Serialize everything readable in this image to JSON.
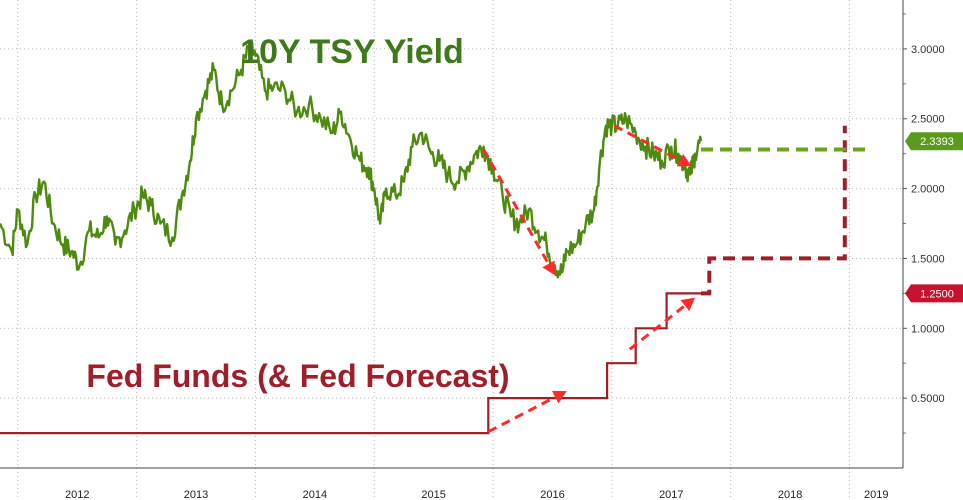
{
  "chart_data": {
    "type": "line",
    "titles": {
      "yield": "10Y TSY Yield",
      "fed": "Fed Funds (& Fed Forecast)"
    },
    "colors": {
      "yield": "#4f8a10",
      "yield_text": "#3f7a1a",
      "fed": "#9e1f2a",
      "fed_text": "#9e1f2a",
      "arrow": "#ff2a2a",
      "grid": "#b8b8b8"
    },
    "x_range": [
      2011.85,
      2019.45
    ],
    "y_range": [
      0.0,
      3.35
    ],
    "year_labels": [
      "2012",
      "2013",
      "2014",
      "2015",
      "2016",
      "2017",
      "2018",
      "2019"
    ],
    "y_ticks": [
      "0.5000",
      "1.0000",
      "1.5000",
      "2.0000",
      "2.5000",
      "3.0000"
    ],
    "y_tick_values": [
      0.5,
      1.0,
      1.5,
      2.0,
      2.5,
      3.0
    ],
    "series": [
      {
        "name": "10Y TSY Yield",
        "points": [
          [
            2011.85,
            1.75
          ],
          [
            2011.95,
            1.55
          ],
          [
            2012.0,
            1.85
          ],
          [
            2012.08,
            1.6
          ],
          [
            2012.15,
            1.95
          ],
          [
            2012.22,
            2.05
          ],
          [
            2012.3,
            1.75
          ],
          [
            2012.38,
            1.6
          ],
          [
            2012.45,
            1.55
          ],
          [
            2012.52,
            1.45
          ],
          [
            2012.6,
            1.7
          ],
          [
            2012.68,
            1.65
          ],
          [
            2012.75,
            1.8
          ],
          [
            2012.82,
            1.6
          ],
          [
            2012.9,
            1.7
          ],
          [
            2012.98,
            1.85
          ],
          [
            2013.05,
            1.95
          ],
          [
            2013.12,
            1.88
          ],
          [
            2013.2,
            1.75
          ],
          [
            2013.3,
            1.65
          ],
          [
            2013.38,
            1.95
          ],
          [
            2013.45,
            2.2
          ],
          [
            2013.5,
            2.5
          ],
          [
            2013.58,
            2.7
          ],
          [
            2013.65,
            2.85
          ],
          [
            2013.72,
            2.6
          ],
          [
            2013.8,
            2.7
          ],
          [
            2013.88,
            2.85
          ],
          [
            2013.95,
            3.0
          ],
          [
            2014.0,
            2.95
          ],
          [
            2014.08,
            2.7
          ],
          [
            2014.15,
            2.72
          ],
          [
            2014.25,
            2.7
          ],
          [
            2014.35,
            2.55
          ],
          [
            2014.45,
            2.6
          ],
          [
            2014.55,
            2.5
          ],
          [
            2014.65,
            2.4
          ],
          [
            2014.72,
            2.55
          ],
          [
            2014.8,
            2.35
          ],
          [
            2014.88,
            2.2
          ],
          [
            2014.95,
            2.15
          ],
          [
            2015.0,
            2.0
          ],
          [
            2015.05,
            1.75
          ],
          [
            2015.1,
            2.0
          ],
          [
            2015.18,
            1.95
          ],
          [
            2015.25,
            2.05
          ],
          [
            2015.32,
            2.3
          ],
          [
            2015.4,
            2.4
          ],
          [
            2015.48,
            2.25
          ],
          [
            2015.55,
            2.2
          ],
          [
            2015.62,
            2.1
          ],
          [
            2015.7,
            2.05
          ],
          [
            2015.78,
            2.15
          ],
          [
            2015.85,
            2.25
          ],
          [
            2015.92,
            2.3
          ],
          [
            2016.0,
            2.15
          ],
          [
            2016.08,
            1.95
          ],
          [
            2016.15,
            1.8
          ],
          [
            2016.22,
            1.75
          ],
          [
            2016.3,
            1.85
          ],
          [
            2016.38,
            1.7
          ],
          [
            2016.45,
            1.6
          ],
          [
            2016.52,
            1.45
          ],
          [
            2016.58,
            1.4
          ],
          [
            2016.62,
            1.55
          ],
          [
            2016.7,
            1.6
          ],
          [
            2016.78,
            1.75
          ],
          [
            2016.85,
            1.85
          ],
          [
            2016.9,
            2.2
          ],
          [
            2016.95,
            2.45
          ],
          [
            2017.0,
            2.45
          ],
          [
            2017.05,
            2.45
          ],
          [
            2017.12,
            2.5
          ],
          [
            2017.2,
            2.4
          ],
          [
            2017.28,
            2.3
          ],
          [
            2017.35,
            2.25
          ],
          [
            2017.42,
            2.2
          ],
          [
            2017.5,
            2.3
          ],
          [
            2017.56,
            2.25
          ],
          [
            2017.62,
            2.15
          ],
          [
            2017.66,
            2.1
          ],
          [
            2017.7,
            2.25
          ],
          [
            2017.75,
            2.34
          ]
        ]
      },
      {
        "name": "Fed Funds",
        "points": [
          [
            2011.85,
            0.25
          ],
          [
            2015.96,
            0.25
          ],
          [
            2015.96,
            0.5
          ],
          [
            2016.96,
            0.5
          ],
          [
            2016.96,
            0.75
          ],
          [
            2017.2,
            0.75
          ],
          [
            2017.2,
            1.0
          ],
          [
            2017.46,
            1.0
          ],
          [
            2017.46,
            1.25
          ],
          [
            2017.75,
            1.25
          ]
        ]
      },
      {
        "name": "Fed Forecast",
        "points": [
          [
            2017.75,
            1.25
          ],
          [
            2017.82,
            1.25
          ],
          [
            2017.82,
            1.5
          ],
          [
            2018.96,
            1.5
          ],
          [
            2018.96,
            2.45
          ]
        ]
      },
      {
        "name": "Yield Forecast",
        "points": [
          [
            2017.75,
            2.28
          ],
          [
            2019.15,
            2.28
          ]
        ]
      }
    ],
    "arrows": [
      [
        [
          2015.92,
          2.28
        ],
        [
          2016.52,
          1.38
        ]
      ],
      [
        [
          2017.02,
          2.45
        ],
        [
          2017.67,
          2.16
        ]
      ],
      [
        [
          2015.96,
          0.26
        ],
        [
          2016.62,
          0.55
        ]
      ],
      [
        [
          2017.15,
          0.85
        ],
        [
          2017.7,
          1.22
        ]
      ]
    ],
    "badges": [
      {
        "value": "2.3393",
        "y": 2.3393,
        "color": "#5a9a1e"
      },
      {
        "value": "1.2500",
        "y": 1.25,
        "color": "#c4122f"
      }
    ]
  }
}
